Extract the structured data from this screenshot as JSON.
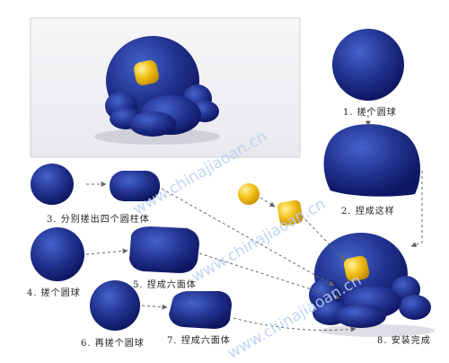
{
  "colors": {
    "clay_blue": "#22338f",
    "clay_blue_light": "#3a56bf",
    "clay_blue_dark": "#0d1660",
    "clay_yellow": "#f3c21b",
    "photo_bg": "#f4f4f6",
    "arrow": "#666666"
  },
  "steps": [
    {
      "label": "1. 搓个圆球"
    },
    {
      "label": "2. 捏成这样"
    },
    {
      "label": "3. 分别搓出四个圆柱体"
    },
    {
      "label": "4. 搓个圆球"
    },
    {
      "label": "5. 捏成六面体"
    },
    {
      "label": "6. 再搓个圆球"
    },
    {
      "label": "7. 捏成六面体"
    },
    {
      "label": "8. 安装完成"
    }
  ],
  "watermark": "www.chinajiaoan.cn"
}
